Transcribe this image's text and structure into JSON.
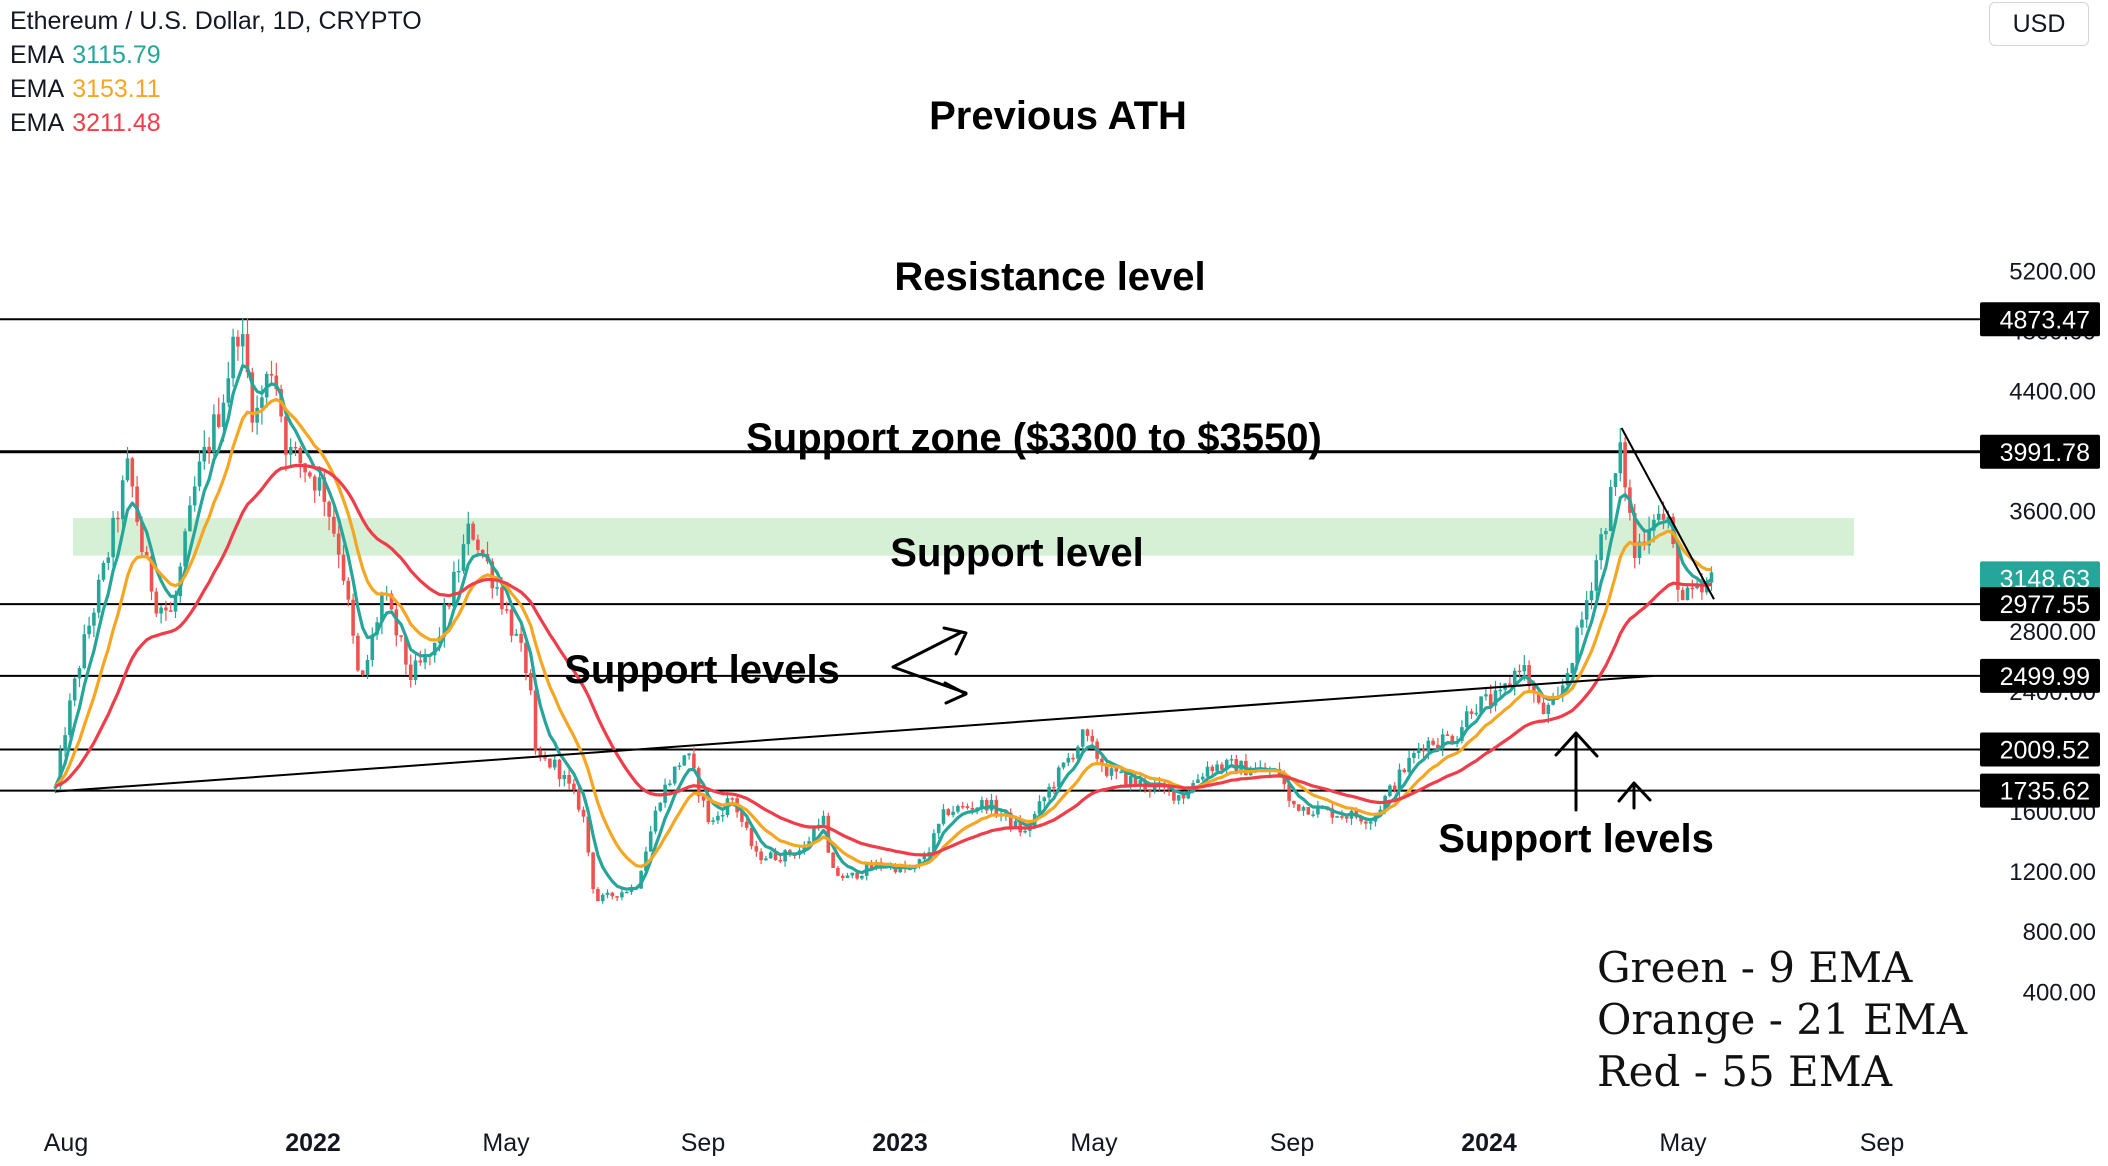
{
  "legend": {
    "title": "Ethereum / U.S. Dollar, 1D, CRYPTO",
    "emas": [
      {
        "label": "EMA",
        "value": "3115.79",
        "color": "#26a69a"
      },
      {
        "label": "EMA",
        "value": "3153.11",
        "color": "#f5a623"
      },
      {
        "label": "EMA",
        "value": "3211.48",
        "color": "#ef3e4a"
      }
    ]
  },
  "currency_button": "USD",
  "ema_note": [
    "Green - 9 EMA",
    "Orange - 21 EMA",
    "Red - 55 EMA"
  ],
  "chart_data": {
    "type": "candlestick",
    "title": "Ethereum / U.S. Dollar, 1D, CRYPTO",
    "x_ticks": [
      "Aug",
      "2022",
      "May",
      "Sep",
      "2023",
      "May",
      "Sep",
      "2024",
      "May",
      "Sep"
    ],
    "y_ticks": [
      400,
      800,
      1200,
      1600,
      2000,
      2400,
      2800,
      3200,
      3600,
      4000,
      4400,
      4800,
      5200
    ],
    "ylim": [
      200,
      5550
    ],
    "grid": false,
    "price_tags": [
      {
        "label": "4873.47",
        "value": 4873.47,
        "bg": "#000000"
      },
      {
        "label": "3991.78",
        "value": 3991.78,
        "bg": "#000000"
      },
      {
        "label": "3148.63",
        "value": 3148.63,
        "bg": "#26a69a"
      },
      {
        "label": "2977.55",
        "value": 2977.55,
        "bg": "#000000"
      },
      {
        "label": "2499.99",
        "value": 2499.99,
        "bg": "#000000"
      },
      {
        "label": "2009.52",
        "value": 2009.52,
        "bg": "#000000"
      },
      {
        "label": "1735.62",
        "value": 1735.62,
        "bg": "#000000"
      }
    ],
    "horizontal_levels": [
      {
        "value": 4873.47,
        "label": "Previous ATH"
      },
      {
        "value": 3991.78,
        "label": "Resistance level"
      },
      {
        "value": 2977.55,
        "label": "Support level"
      },
      {
        "value": 2499.99,
        "label": "Support levels"
      },
      {
        "value": 2009.52,
        "label": ""
      },
      {
        "value": 1735.62,
        "label": "Support levels"
      }
    ],
    "support_zone": {
      "from": 3300,
      "to": 3550,
      "label": "Support zone ($3300 to $3550)"
    },
    "trendlines": [
      {
        "from": [
          "2021-07-20",
          1730
        ],
        "to": [
          "2024-04-01",
          2500
        ]
      },
      {
        "from": [
          "2024-03-12",
          4150
        ],
        "to": [
          "2024-05-08",
          3010
        ]
      }
    ],
    "series": [
      {
        "name": "EMA 9",
        "color": "#26a69a",
        "last": 3115.79
      },
      {
        "name": "EMA 21",
        "color": "#f5a623",
        "last": 3153.11
      },
      {
        "name": "EMA 55",
        "color": "#ef3e4a",
        "last": 3211.48
      }
    ],
    "price_path": [
      [
        "2021-07-20",
        1750
      ],
      [
        "2021-07-26",
        2150
      ],
      [
        "2021-08-05",
        2650
      ],
      [
        "2021-08-20",
        3250
      ],
      [
        "2021-09-03",
        3900
      ],
      [
        "2021-09-12",
        3300
      ],
      [
        "2021-09-20",
        3000
      ],
      [
        "2021-09-30",
        2900
      ],
      [
        "2021-10-15",
        3800
      ],
      [
        "2021-10-30",
        4300
      ],
      [
        "2021-11-10",
        4850
      ],
      [
        "2021-11-20",
        4200
      ],
      [
        "2021-12-01",
        4600
      ],
      [
        "2021-12-10",
        4000
      ],
      [
        "2021-12-20",
        3900
      ],
      [
        "2022-01-01",
        3750
      ],
      [
        "2022-01-12",
        3300
      ],
      [
        "2022-01-24",
        2400
      ],
      [
        "2022-02-07",
        3050
      ],
      [
        "2022-02-24",
        2500
      ],
      [
        "2022-03-10",
        2650
      ],
      [
        "2022-04-02",
        3500
      ],
      [
        "2022-04-20",
        3050
      ],
      [
        "2022-05-08",
        2500
      ],
      [
        "2022-05-12",
        1950
      ],
      [
        "2022-05-25",
        1900
      ],
      [
        "2022-06-10",
        1600
      ],
      [
        "2022-06-18",
        1000
      ],
      [
        "2022-07-01",
        1050
      ],
      [
        "2022-07-13",
        1100
      ],
      [
        "2022-07-28",
        1700
      ],
      [
        "2022-08-13",
        2000
      ],
      [
        "2022-08-28",
        1500
      ],
      [
        "2022-09-10",
        1700
      ],
      [
        "2022-09-25",
        1300
      ],
      [
        "2022-10-10",
        1300
      ],
      [
        "2022-10-25",
        1350
      ],
      [
        "2022-11-05",
        1600
      ],
      [
        "2022-11-10",
        1200
      ],
      [
        "2022-11-20",
        1150
      ],
      [
        "2022-12-10",
        1250
      ],
      [
        "2022-12-31",
        1200
      ],
      [
        "2023-01-10",
        1350
      ],
      [
        "2023-01-20",
        1600
      ],
      [
        "2023-02-15",
        1650
      ],
      [
        "2023-03-10",
        1450
      ],
      [
        "2023-03-25",
        1750
      ],
      [
        "2023-04-15",
        2100
      ],
      [
        "2023-05-01",
        1850
      ],
      [
        "2023-05-15",
        1800
      ],
      [
        "2023-06-15",
        1700
      ],
      [
        "2023-07-01",
        1900
      ],
      [
        "2023-07-15",
        1900
      ],
      [
        "2023-08-15",
        1850
      ],
      [
        "2023-08-20",
        1650
      ],
      [
        "2023-09-10",
        1600
      ],
      [
        "2023-10-10",
        1550
      ],
      [
        "2023-10-25",
        1800
      ],
      [
        "2023-11-10",
        2050
      ],
      [
        "2023-12-01",
        2100
      ],
      [
        "2023-12-10",
        2300
      ],
      [
        "2023-12-28",
        2350
      ],
      [
        "2024-01-10",
        2600
      ],
      [
        "2024-01-22",
        2250
      ],
      [
        "2024-02-01",
        2300
      ],
      [
        "2024-02-15",
        2800
      ],
      [
        "2024-02-28",
        3400
      ],
      [
        "2024-03-12",
        4000
      ],
      [
        "2024-03-20",
        3300
      ],
      [
        "2024-04-01",
        3600
      ],
      [
        "2024-04-10",
        3500
      ],
      [
        "2024-04-18",
        3000
      ],
      [
        "2024-05-01",
        3050
      ],
      [
        "2024-05-08",
        3148
      ]
    ]
  }
}
